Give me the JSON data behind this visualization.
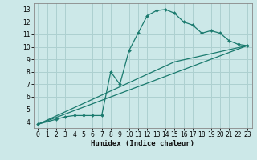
{
  "xlabel": "Humidex (Indice chaleur)",
  "background_color": "#cce8e8",
  "grid_color": "#add0d0",
  "line_color": "#1a7a6e",
  "xlim": [
    -0.5,
    23.5
  ],
  "ylim": [
    3.5,
    13.5
  ],
  "xticks": [
    0,
    1,
    2,
    3,
    4,
    5,
    6,
    7,
    8,
    9,
    10,
    11,
    12,
    13,
    14,
    15,
    16,
    17,
    18,
    19,
    20,
    21,
    22,
    23
  ],
  "yticks": [
    4,
    5,
    6,
    7,
    8,
    9,
    10,
    11,
    12,
    13
  ],
  "curve1_x": [
    0,
    2,
    3,
    4,
    5,
    6,
    7,
    8,
    9,
    10,
    11,
    12,
    13,
    14,
    15,
    16,
    17,
    18,
    19,
    20,
    21,
    22,
    23
  ],
  "curve1_y": [
    3.8,
    4.2,
    4.4,
    4.5,
    4.5,
    4.5,
    4.5,
    8.0,
    7.0,
    9.7,
    11.1,
    12.5,
    12.9,
    13.0,
    12.7,
    12.0,
    11.75,
    11.1,
    11.3,
    11.1,
    10.5,
    10.2,
    10.1
  ],
  "curve2_x": [
    0,
    23
  ],
  "curve2_y": [
    3.8,
    10.1
  ],
  "curve3_x": [
    0,
    15,
    23
  ],
  "curve3_y": [
    3.8,
    8.8,
    10.1
  ]
}
